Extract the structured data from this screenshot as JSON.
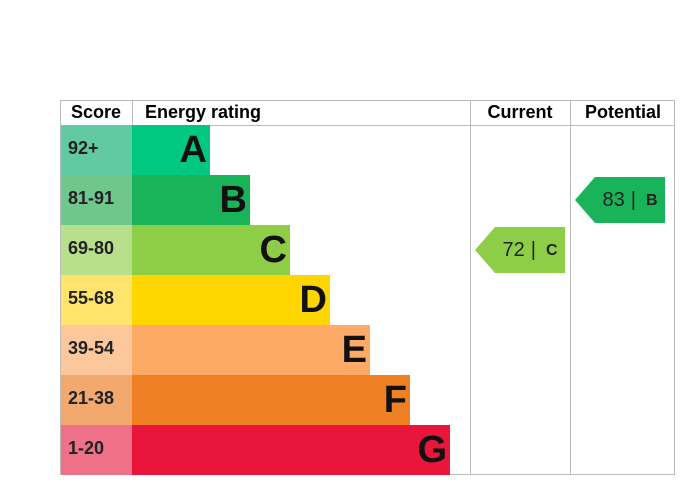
{
  "headers": {
    "score": "Score",
    "rating": "Energy rating",
    "current": "Current",
    "potential": "Potential"
  },
  "rows": [
    {
      "score": "92+",
      "letter": "A",
      "color": "#00c781",
      "score_color": "#63c9a3"
    },
    {
      "score": "81-91",
      "letter": "B",
      "color": "#19b459",
      "score_color": "#6fc78e"
    },
    {
      "score": "69-80",
      "letter": "C",
      "color": "#8dce46",
      "score_color": "#b7df8c"
    },
    {
      "score": "55-68",
      "letter": "D",
      "color": "#ffd500",
      "score_color": "#ffe46b"
    },
    {
      "score": "39-54",
      "letter": "E",
      "color": "#fcaa65",
      "score_color": "#fdc79c"
    },
    {
      "score": "21-38",
      "letter": "F",
      "color": "#ef8023",
      "score_color": "#f3a86d"
    },
    {
      "score": "1-20",
      "letter": "G",
      "color": "#e9153b",
      "score_color": "#ef7189"
    }
  ],
  "current": {
    "score": 72,
    "rating": "C"
  },
  "potential": {
    "score": 83,
    "rating": "B"
  },
  "separator": "|"
}
